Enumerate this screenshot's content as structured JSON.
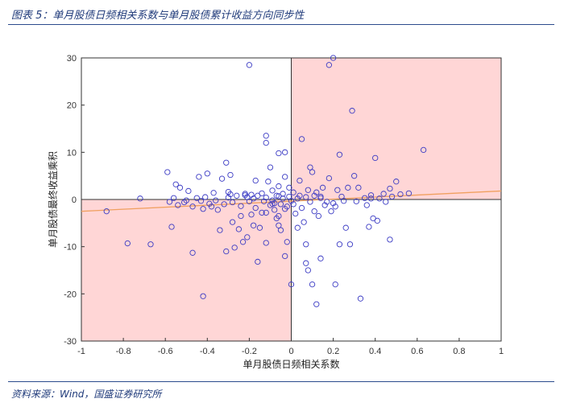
{
  "figure": {
    "title": "图表 5：单月股债日频相关系数与单月股债累计收益方向同步性",
    "source": "资料来源：Wind，国盛证券研究所"
  },
  "chart_data": {
    "type": "scatter",
    "xlabel": "单月股债日频相关系数",
    "ylabel": "单月股债最终收益乘积",
    "xlim": [
      -1,
      1
    ],
    "ylim": [
      -30,
      30
    ],
    "xticks": [
      -1,
      -0.8,
      -0.6,
      -0.4,
      -0.2,
      0,
      0.2,
      0.4,
      0.6,
      0.8,
      1
    ],
    "yticks": [
      -30,
      -20,
      -10,
      0,
      10,
      20,
      30
    ],
    "xtick_labels": [
      "-1",
      "-0.8",
      "-0.6",
      "-0.4",
      "-0.2",
      "0",
      "0.2",
      "0.4",
      "0.6",
      "0.8",
      "1"
    ],
    "ytick_labels": [
      "-30",
      "-20",
      "-10",
      "0",
      "10",
      "20",
      "30"
    ],
    "grid": false,
    "shaded_quadrants": [
      "top-right",
      "bottom-left"
    ],
    "colors": {
      "shade": "#ffd6d6",
      "points": "#3b3bc4",
      "trend": "#f0a060",
      "axis": "#333333"
    },
    "trend_line": {
      "x": [
        -1,
        1
      ],
      "y": [
        -2.5,
        1.8
      ]
    },
    "points": [
      [
        -0.88,
        -2.5
      ],
      [
        -0.78,
        -9.3
      ],
      [
        -0.72,
        0.2
      ],
      [
        -0.67,
        -9.5
      ],
      [
        -0.59,
        5.8
      ],
      [
        -0.58,
        -0.5
      ],
      [
        -0.57,
        -5.8
      ],
      [
        -0.56,
        0.3
      ],
      [
        -0.55,
        3.2
      ],
      [
        -0.54,
        -1.2
      ],
      [
        -0.53,
        2.5
      ],
      [
        -0.51,
        -0.6
      ],
      [
        -0.5,
        -0.2
      ],
      [
        -0.49,
        1.8
      ],
      [
        -0.47,
        -1.5
      ],
      [
        -0.47,
        -11.3
      ],
      [
        -0.45,
        0.3
      ],
      [
        -0.44,
        4.8
      ],
      [
        -0.43,
        -0.3
      ],
      [
        -0.42,
        -2.0
      ],
      [
        -0.42,
        -20.5
      ],
      [
        -0.41,
        0.5
      ],
      [
        -0.4,
        5.5
      ],
      [
        -0.39,
        -0.9
      ],
      [
        -0.38,
        -1.5
      ],
      [
        -0.37,
        1.4
      ],
      [
        -0.36,
        -0.2
      ],
      [
        -0.35,
        -2.2
      ],
      [
        -0.34,
        -6.5
      ],
      [
        -0.33,
        4.4
      ],
      [
        -0.32,
        -1.0
      ],
      [
        -0.31,
        7.8
      ],
      [
        -0.31,
        -11.0
      ],
      [
        -0.3,
        0.4
      ],
      [
        -0.3,
        1.6
      ],
      [
        -0.29,
        5.2
      ],
      [
        -0.28,
        -4.8
      ],
      [
        -0.28,
        -0.6
      ],
      [
        -0.27,
        -10.2
      ],
      [
        -0.26,
        0.8
      ],
      [
        -0.25,
        -6.3
      ],
      [
        -0.24,
        -1.4
      ],
      [
        -0.24,
        -3.5
      ],
      [
        -0.23,
        -9.0
      ],
      [
        -0.22,
        1.2
      ],
      [
        -0.21,
        0.5
      ],
      [
        -0.21,
        -8.0
      ],
      [
        -0.2,
        28.5
      ],
      [
        -0.2,
        -0.4
      ],
      [
        -0.19,
        1.0
      ],
      [
        -0.19,
        -3.2
      ],
      [
        -0.18,
        0.2
      ],
      [
        -0.18,
        -5.5
      ],
      [
        -0.17,
        -1.8
      ],
      [
        -0.17,
        4.0
      ],
      [
        -0.16,
        -13.2
      ],
      [
        -0.16,
        0.8
      ],
      [
        -0.15,
        -6.0
      ],
      [
        -0.14,
        1.3
      ],
      [
        -0.14,
        -2.8
      ],
      [
        -0.13,
        -0.4
      ],
      [
        -0.12,
        0.4
      ],
      [
        -0.12,
        -9.2
      ],
      [
        -0.12,
        -2.8
      ],
      [
        -0.11,
        3.8
      ],
      [
        -0.1,
        6.8
      ],
      [
        -0.1,
        -1.2
      ],
      [
        -0.09,
        -0.2
      ],
      [
        -0.09,
        1.9
      ],
      [
        -0.08,
        -2.2
      ],
      [
        -0.08,
        -0.8
      ],
      [
        -0.07,
        -4.0
      ],
      [
        -0.07,
        0.8
      ],
      [
        -0.06,
        -3.5
      ],
      [
        -0.06,
        2.8
      ],
      [
        -0.05,
        -1.0
      ],
      [
        -0.05,
        -6.5
      ],
      [
        -0.04,
        0.2
      ],
      [
        -0.04,
        1.2
      ],
      [
        -0.03,
        4.8
      ],
      [
        -0.03,
        -2.0
      ],
      [
        -0.02,
        -9.0
      ],
      [
        -0.02,
        -1.5
      ],
      [
        -0.01,
        0.6
      ],
      [
        -0.01,
        2.5
      ],
      [
        0.0,
        -0.3
      ],
      [
        -0.12,
        13.5
      ],
      [
        -0.12,
        12.0
      ],
      [
        -0.06,
        9.8
      ],
      [
        -0.03,
        10.0
      ],
      [
        0.0,
        -18.0
      ],
      [
        -0.06,
        -5.5
      ],
      [
        -0.03,
        -12.0
      ],
      [
        0.01,
        1.5
      ],
      [
        0.01,
        -1.0
      ],
      [
        0.02,
        -3.0
      ],
      [
        0.03,
        0.2
      ],
      [
        0.03,
        -6.0
      ],
      [
        0.04,
        4.0
      ],
      [
        0.04,
        0.8
      ],
      [
        0.05,
        12.8
      ],
      [
        0.05,
        -1.8
      ],
      [
        0.06,
        -4.8
      ],
      [
        0.07,
        0.5
      ],
      [
        0.07,
        -13.5
      ],
      [
        0.07,
        -9.5
      ],
      [
        0.08,
        -15.0
      ],
      [
        0.08,
        2.0
      ],
      [
        0.09,
        -0.5
      ],
      [
        0.09,
        6.8
      ],
      [
        0.1,
        5.8
      ],
      [
        0.1,
        -18.0
      ],
      [
        0.11,
        -2.5
      ],
      [
        0.11,
        0.8
      ],
      [
        0.12,
        -22.2
      ],
      [
        0.12,
        1.5
      ],
      [
        0.13,
        -3.5
      ],
      [
        0.14,
        -12.5
      ],
      [
        0.14,
        0.3
      ],
      [
        0.15,
        2.5
      ],
      [
        0.16,
        -1.2
      ],
      [
        0.17,
        -0.5
      ],
      [
        0.18,
        28.5
      ],
      [
        0.18,
        4.5
      ],
      [
        0.19,
        -2.5
      ],
      [
        0.2,
        -0.8
      ],
      [
        0.2,
        30.0
      ],
      [
        0.21,
        -18.0
      ],
      [
        0.21,
        -1.5
      ],
      [
        0.22,
        2.0
      ],
      [
        0.23,
        9.5
      ],
      [
        0.23,
        -9.5
      ],
      [
        0.24,
        0.6
      ],
      [
        0.25,
        -0.3
      ],
      [
        0.26,
        -6.0
      ],
      [
        0.27,
        2.5
      ],
      [
        0.28,
        -9.5
      ],
      [
        0.29,
        18.8
      ],
      [
        0.3,
        5.0
      ],
      [
        0.31,
        -0.4
      ],
      [
        0.32,
        2.5
      ],
      [
        0.33,
        -21.0
      ],
      [
        0.35,
        0.3
      ],
      [
        0.36,
        -1.2
      ],
      [
        0.37,
        -5.8
      ],
      [
        0.38,
        0.9
      ],
      [
        0.39,
        -4.0
      ],
      [
        0.4,
        8.8
      ],
      [
        0.41,
        -4.5
      ],
      [
        0.42,
        0.2
      ],
      [
        0.44,
        1.2
      ],
      [
        0.45,
        -0.5
      ],
      [
        0.47,
        -8.5
      ],
      [
        0.47,
        2.3
      ],
      [
        0.48,
        0.6
      ],
      [
        0.5,
        3.8
      ],
      [
        0.52,
        1.1
      ],
      [
        0.56,
        1.3
      ],
      [
        0.63,
        10.5
      ],
      [
        0.38,
        0.2
      ],
      [
        -0.22,
        0.9
      ],
      [
        -0.29,
        1.1
      ],
      [
        -0.06,
        0.7
      ],
      [
        0.14,
        0.6
      ],
      [
        -0.09,
        -0.9
      ]
    ]
  }
}
